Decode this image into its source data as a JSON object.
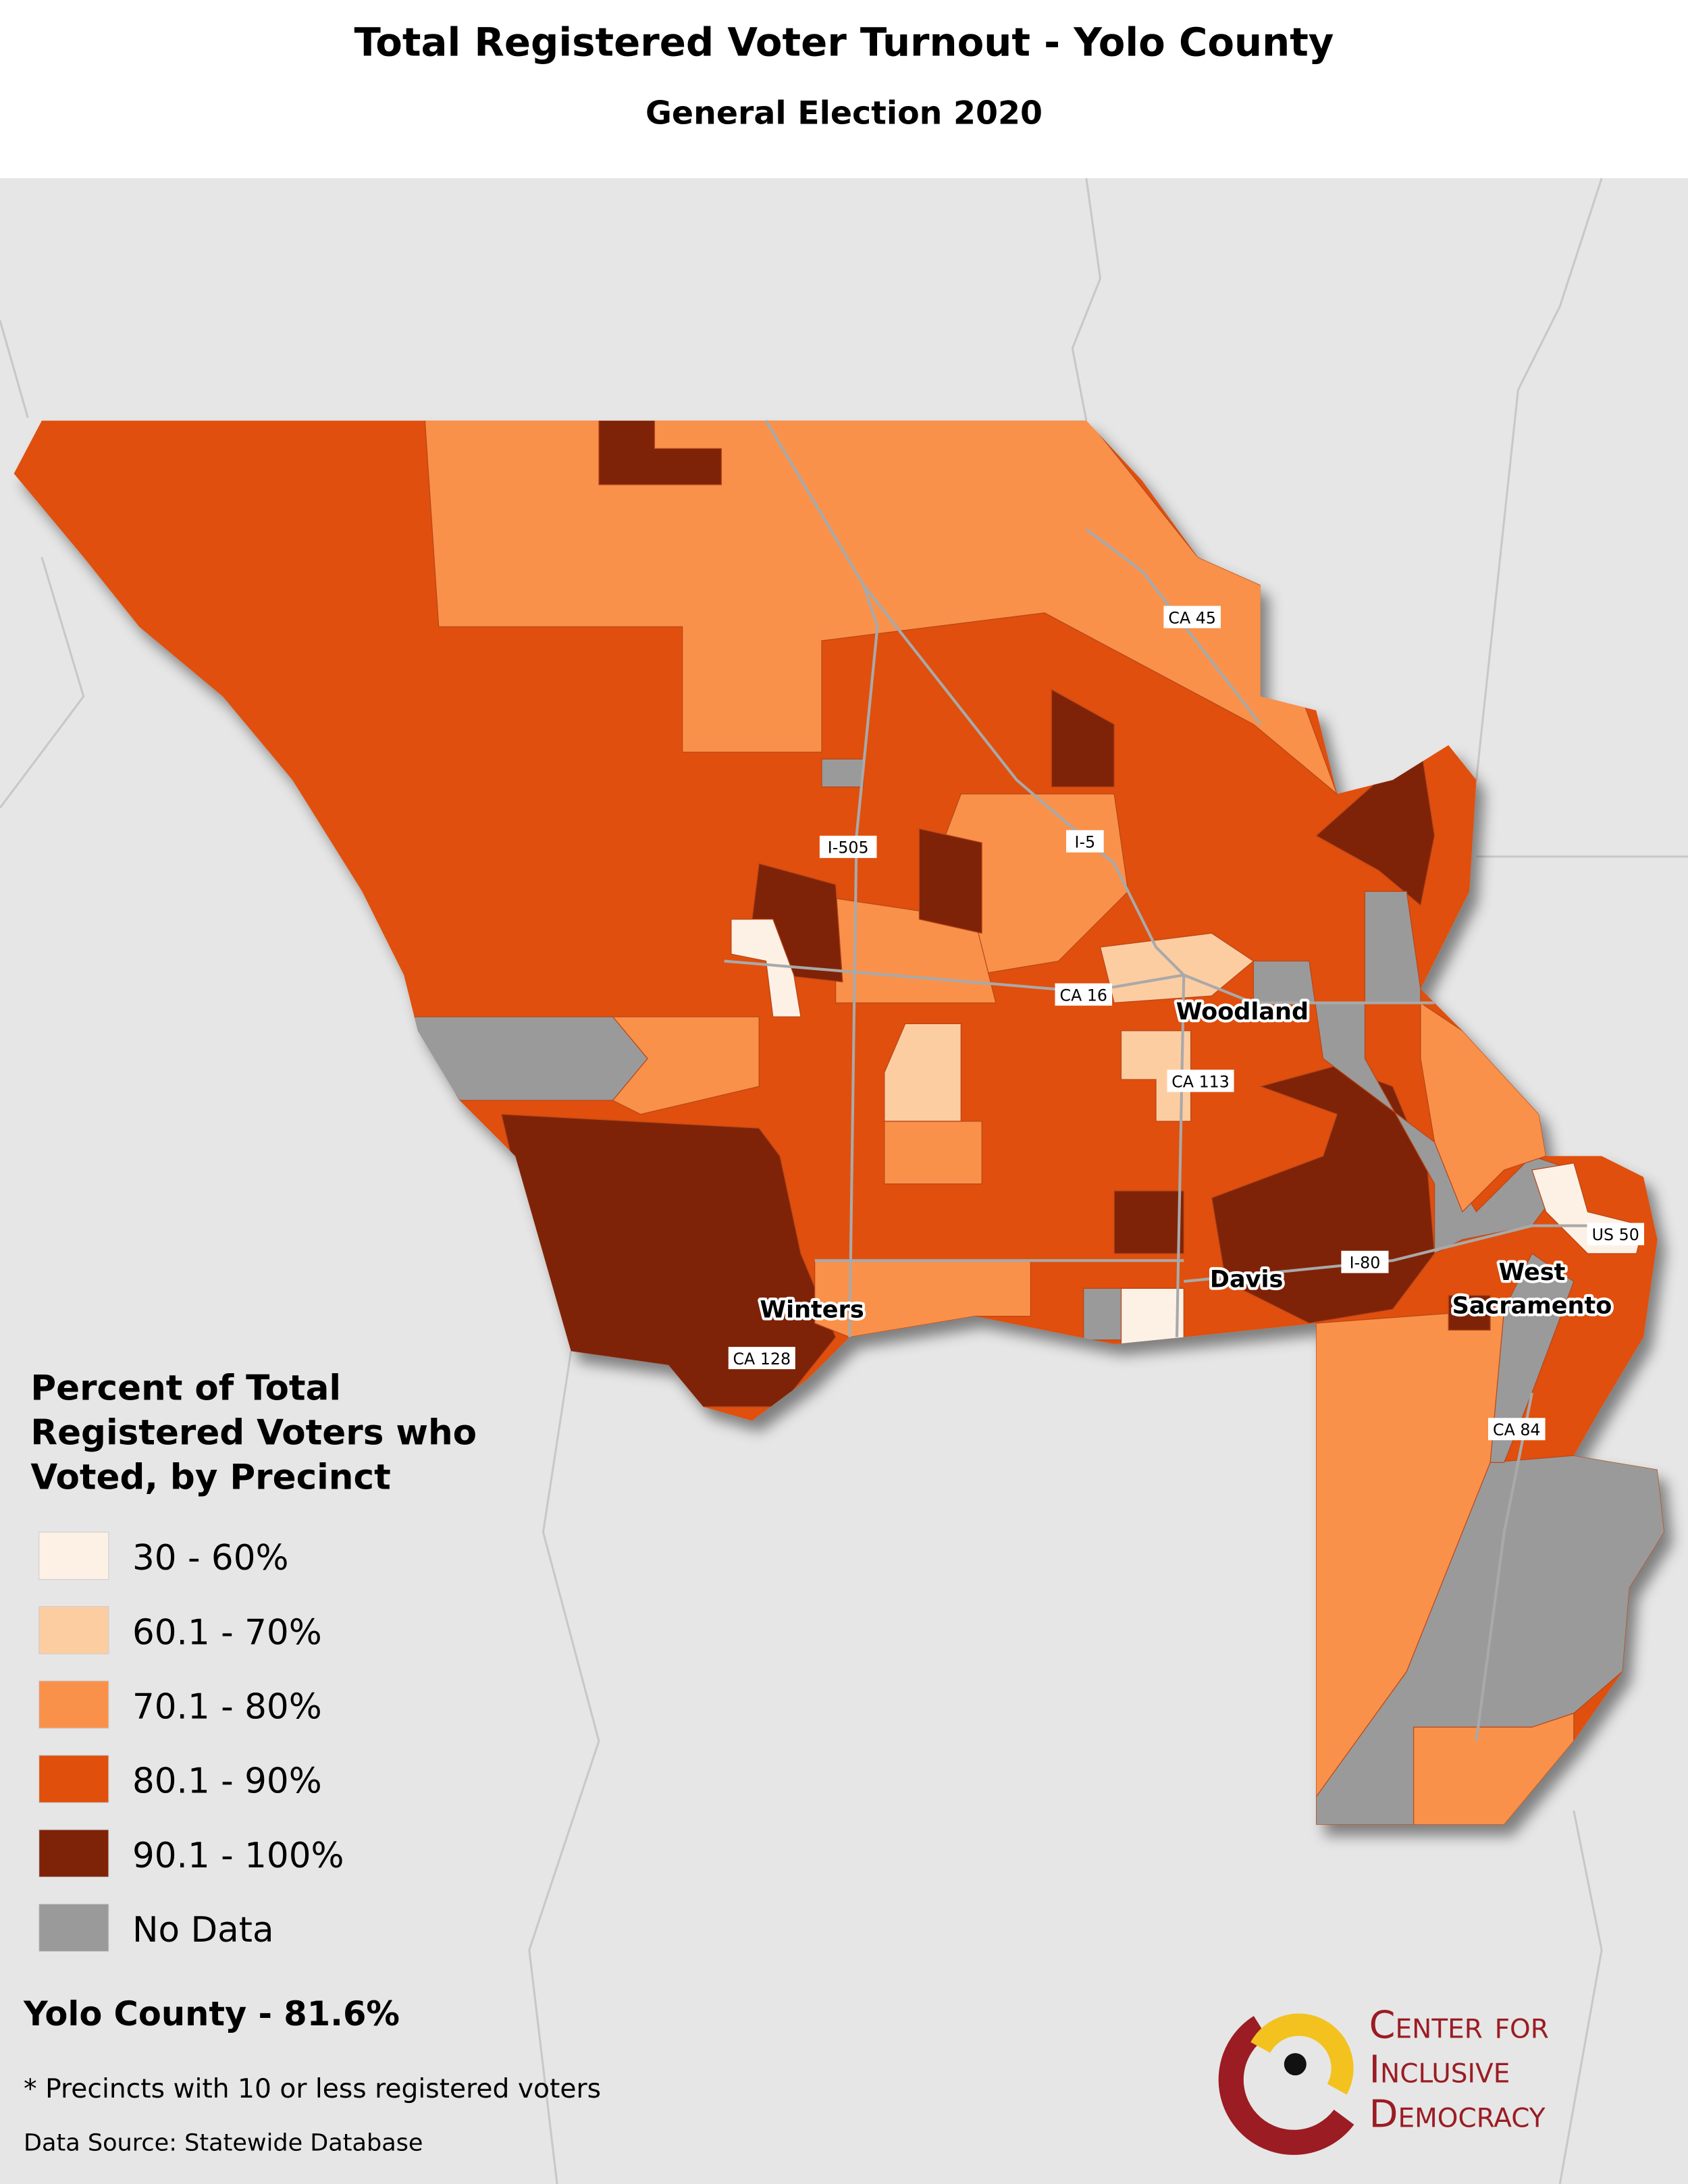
{
  "header": {
    "title": "Total Registered Voter Turnout - Yolo County",
    "subtitle": "General Election 2020"
  },
  "legend": {
    "title": [
      "Percent of Total",
      "Registered Voters who",
      "Voted, by Precinct"
    ],
    "items": [
      {
        "label": "30 - 60%",
        "color": "#fdf1e6"
      },
      {
        "label": "60.1 - 70%",
        "color": "#fdcda2"
      },
      {
        "label": "70.1 - 80%",
        "color": "#f9914a"
      },
      {
        "label": "80.1 - 90%",
        "color": "#e04f0c"
      },
      {
        "label": "90.1 - 100%",
        "color": "#7f2308"
      },
      {
        "label": "No Data",
        "color": "#9a9a9a"
      }
    ]
  },
  "places": [
    "Woodland",
    "Davis",
    "Winters",
    "West",
    "Sacramento"
  ],
  "roads": [
    "CA 45",
    "I-505",
    "I-5",
    "CA 16",
    "CA 113",
    "I-80",
    "US 50",
    "CA 128",
    "CA 84"
  ],
  "summary": "Yolo County - 81.6%",
  "footnote": "* Precincts with 10 or less registered voters",
  "source": "Data Source: Statewide Database",
  "logo": [
    "Center for",
    "Inclusive",
    "Democracy"
  ]
}
